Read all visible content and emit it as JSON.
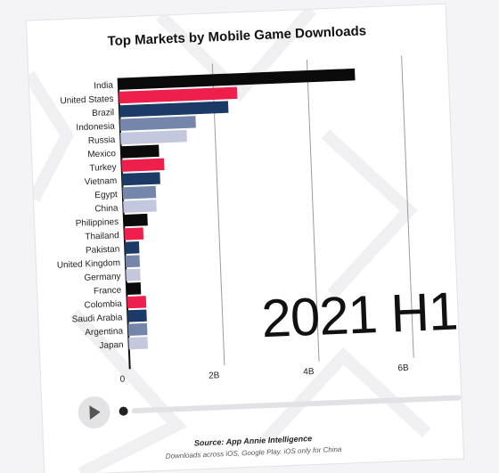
{
  "chart_data": {
    "type": "bar",
    "orientation": "horizontal",
    "title": "Top Markets by Mobile Game Downloads",
    "categories": [
      "India",
      "United States",
      "Brazil",
      "Indonesia",
      "Russia",
      "Mexico",
      "Turkey",
      "Vietnam",
      "Egypt",
      "China",
      "Philippines",
      "Thailand",
      "Pakistan",
      "United Kingdom",
      "Germany",
      "France",
      "Colombia",
      "Saudi Arabia",
      "Argentina",
      "Japan"
    ],
    "values": [
      5.0,
      2.5,
      2.3,
      1.6,
      1.4,
      0.8,
      0.9,
      0.8,
      0.7,
      0.7,
      0.5,
      0.4,
      0.3,
      0.3,
      0.3,
      0.3,
      0.4,
      0.4,
      0.4,
      0.4
    ],
    "bar_colors": [
      "#0a0a0a",
      "#ee1f4b",
      "#1c3a66",
      "#7487aa",
      "#c3c8de",
      "#0a0a0a",
      "#ee1f4b",
      "#1c3a66",
      "#7487aa",
      "#c3c8de",
      "#0a0a0a",
      "#ee1f4b",
      "#1c3a66",
      "#7487aa",
      "#c3c8de",
      "#0a0a0a",
      "#ee1f4b",
      "#1c3a66",
      "#7487aa",
      "#c3c8de"
    ],
    "x_ticks": [
      {
        "value": 0,
        "label": "0"
      },
      {
        "value": 2,
        "label": "2B"
      },
      {
        "value": 4,
        "label": "4B"
      },
      {
        "value": 6,
        "label": "6B"
      }
    ],
    "xlim": [
      0,
      6.4
    ],
    "grid": true,
    "period_label": "2021 H1"
  },
  "player": {
    "play_icon": "play-icon"
  },
  "footer": {
    "source": "Source: App Annie Intelligence",
    "note": "Downloads across iOS, Google Play. iOS only for China"
  }
}
